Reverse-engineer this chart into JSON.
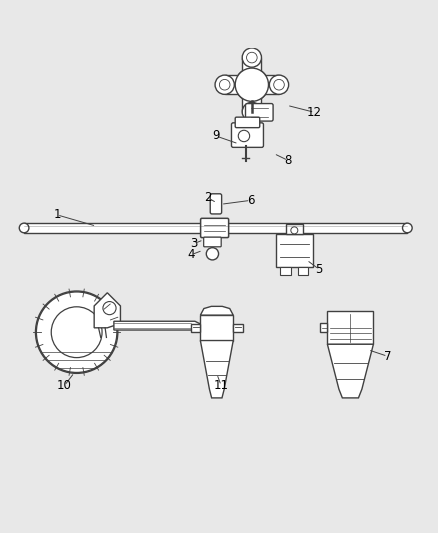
{
  "background_color": "#e8e8e8",
  "line_color": "#404040",
  "label_color": "#000000",
  "figsize": [
    4.38,
    5.33
  ],
  "dpi": 100,
  "label_data": {
    "1": [
      0.13,
      0.618,
      0.22,
      0.592
    ],
    "2": [
      0.475,
      0.657,
      0.495,
      0.645
    ],
    "3": [
      0.442,
      0.552,
      0.465,
      0.561
    ],
    "4": [
      0.437,
      0.527,
      0.463,
      0.537
    ],
    "5": [
      0.728,
      0.494,
      0.7,
      0.515
    ],
    "6": [
      0.572,
      0.651,
      0.504,
      0.642
    ],
    "7": [
      0.885,
      0.295,
      0.84,
      0.31
    ],
    "8": [
      0.658,
      0.742,
      0.625,
      0.758
    ],
    "9": [
      0.493,
      0.798,
      0.545,
      0.78
    ],
    "10": [
      0.147,
      0.228,
      0.17,
      0.258
    ],
    "11": [
      0.505,
      0.228,
      0.495,
      0.255
    ],
    "12": [
      0.718,
      0.852,
      0.655,
      0.868
    ]
  }
}
